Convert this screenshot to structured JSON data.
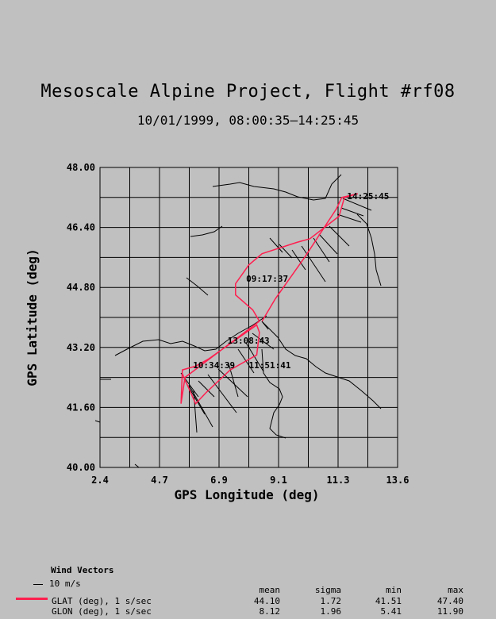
{
  "title": "Mesoscale Alpine Project, Flight #rf08",
  "subtitle": "10/01/1999, 08:00:35—14:25:45",
  "chart_data": {
    "type": "line",
    "xlabel": "GPS Longitude (deg)",
    "ylabel": "GPS Latitude (deg)",
    "xlim": [
      2.4,
      13.6
    ],
    "ylim": [
      40.0,
      48.0
    ],
    "xticks": [
      "2.4",
      "4.7",
      "6.9",
      "9.1",
      "11.3",
      "13.6"
    ],
    "yticks": [
      "40.00",
      "41.60",
      "43.20",
      "44.80",
      "46.40",
      "48.00"
    ],
    "grid": true,
    "series": [
      {
        "name": "GLAT (deg), 1 s/sec",
        "color": "#ff1f4f",
        "points": [
          [
            5.5,
            42.5
          ],
          [
            6.0,
            41.7
          ],
          [
            6.4,
            42.0
          ],
          [
            7.3,
            42.6
          ],
          [
            8.3,
            43.0
          ],
          [
            8.4,
            43.6
          ],
          [
            8.3,
            43.8
          ],
          [
            6.5,
            42.9
          ],
          [
            6.0,
            42.7
          ],
          [
            5.5,
            42.6
          ],
          [
            5.45,
            41.7
          ],
          [
            5.6,
            42.4
          ],
          [
            8.4,
            43.9
          ],
          [
            8.15,
            44.2
          ],
          [
            7.5,
            44.6
          ],
          [
            7.5,
            44.9
          ],
          [
            8.0,
            45.4
          ],
          [
            8.5,
            45.7
          ],
          [
            9.8,
            46.0
          ],
          [
            10.3,
            46.1
          ],
          [
            11.4,
            46.7
          ],
          [
            11.6,
            47.2
          ],
          [
            12.1,
            47.3
          ],
          [
            11.5,
            47.2
          ],
          [
            11.3,
            46.9
          ],
          [
            10.1,
            45.6
          ],
          [
            9.0,
            44.5
          ],
          [
            8.5,
            43.9
          ]
        ]
      }
    ],
    "time_labels": [
      {
        "text": "14:25:45",
        "lon": 11.7,
        "lat": 47.15
      },
      {
        "text": "09:17:37",
        "lon": 7.9,
        "lat": 44.95
      },
      {
        "text": "13:08:43",
        "lon": 7.2,
        "lat": 43.3
      },
      {
        "text": "10:34:39",
        "lon": 5.9,
        "lat": 42.65
      },
      {
        "text": "11:51:41",
        "lon": 8.0,
        "lat": 42.65
      }
    ],
    "wind_vectors_label": "Wind Vectors",
    "wind_scale_label": "10 m/s",
    "stats": {
      "headers": [
        "mean",
        "sigma",
        "min",
        "max"
      ],
      "rows": [
        {
          "label": "GLAT (deg), 1 s/sec",
          "mean": "44.10",
          "sigma": "1.72",
          "min": "41.51",
          "max": "47.40"
        },
        {
          "label": "GLON (deg), 1 s/sec",
          "mean": "8.12",
          "sigma": "1.96",
          "min": "5.41",
          "max": "11.90"
        }
      ]
    }
  }
}
